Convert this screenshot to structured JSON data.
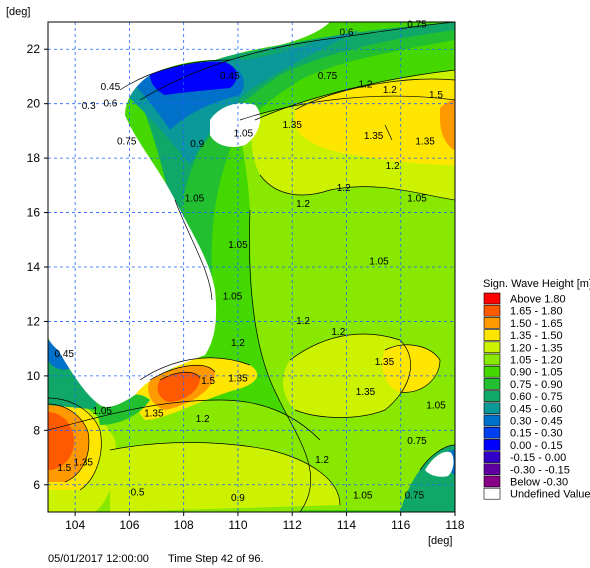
{
  "footer": {
    "timestamp": "05/01/2017 12:00:00",
    "time_step": "Time Step 42 of 96."
  },
  "chart_data": {
    "type": "heatmap",
    "xlabel": "[deg]",
    "ylabel": "[deg]",
    "xlim": [
      103,
      118
    ],
    "ylim": [
      5,
      23
    ],
    "x_ticks": [
      104,
      106,
      108,
      110,
      112,
      114,
      116,
      118
    ],
    "y_ticks": [
      6,
      8,
      10,
      12,
      14,
      16,
      18,
      20,
      22
    ],
    "grid": true,
    "legend_position": "right",
    "legend": {
      "title": "Sign. Wave Height [m]",
      "entries": [
        {
          "label": "Above  1.80",
          "color": "#ff0000"
        },
        {
          "label": "1.65 -  1.80",
          "color": "#ff5a00"
        },
        {
          "label": "1.50 -  1.65",
          "color": "#ff9900"
        },
        {
          "label": "1.35 -  1.50",
          "color": "#ffe600"
        },
        {
          "label": "1.20 -  1.35",
          "color": "#ccf200"
        },
        {
          "label": "1.05 -  1.20",
          "color": "#88e800"
        },
        {
          "label": "0.90 -  1.05",
          "color": "#44d800"
        },
        {
          "label": "0.75 -  0.90",
          "color": "#22c030"
        },
        {
          "label": "0.60 -  0.75",
          "color": "#10a868"
        },
        {
          "label": "0.45 -  0.60",
          "color": "#0a9898"
        },
        {
          "label": "0.30 -  0.45",
          "color": "#0070c8"
        },
        {
          "label": "0.15 -  0.30",
          "color": "#0040f0"
        },
        {
          "label": "0.00 -  0.15",
          "color": "#0000ff"
        },
        {
          "label": "-0.15 -  0.00",
          "color": "#3000c8"
        },
        {
          "label": "-0.30 -  -0.15",
          "color": "#6000a0"
        },
        {
          "label": "Below  -0.30",
          "color": "#880088"
        },
        {
          "label": "Undefined Value",
          "color": "#ffffff"
        }
      ]
    },
    "contour_labels": [
      {
        "text": "0.75",
        "x": 116.6,
        "y": 22.8
      },
      {
        "text": "0.75",
        "x": 113.3,
        "y": 20.9
      },
      {
        "text": "1.2",
        "x": 114.7,
        "y": 20.6
      },
      {
        "text": "1.2",
        "x": 115.6,
        "y": 20.4
      },
      {
        "text": "0.6",
        "x": 114.0,
        "y": 22.5
      },
      {
        "text": "0.6",
        "x": 105.3,
        "y": 19.9
      },
      {
        "text": "0.45",
        "x": 109.7,
        "y": 20.9
      },
      {
        "text": "0.45",
        "x": 105.3,
        "y": 20.5
      },
      {
        "text": "0.3",
        "x": 104.5,
        "y": 19.8
      },
      {
        "text": "1.35",
        "x": 112.0,
        "y": 19.1
      },
      {
        "text": "1.35",
        "x": 115.0,
        "y": 18.7
      },
      {
        "text": "1.35",
        "x": 116.9,
        "y": 18.5
      },
      {
        "text": "1.5",
        "x": 117.3,
        "y": 20.2
      },
      {
        "text": "0.75",
        "x": 105.9,
        "y": 18.5
      },
      {
        "text": "0.9",
        "x": 108.5,
        "y": 18.4
      },
      {
        "text": "1.05",
        "x": 110.2,
        "y": 18.8
      },
      {
        "text": "1.2",
        "x": 115.7,
        "y": 17.6
      },
      {
        "text": "1.2",
        "x": 112.4,
        "y": 16.2
      },
      {
        "text": "1.2",
        "x": 113.9,
        "y": 16.8
      },
      {
        "text": "1.05",
        "x": 116.6,
        "y": 16.4
      },
      {
        "text": "1.05",
        "x": 108.4,
        "y": 16.4
      },
      {
        "text": "1.05",
        "x": 110.0,
        "y": 14.7
      },
      {
        "text": "1.05",
        "x": 115.2,
        "y": 14.1
      },
      {
        "text": "1.05",
        "x": 109.8,
        "y": 12.8
      },
      {
        "text": "1.2",
        "x": 112.4,
        "y": 11.9
      },
      {
        "text": "1.2",
        "x": 113.7,
        "y": 11.5
      },
      {
        "text": "1.2",
        "x": 110.0,
        "y": 11.1
      },
      {
        "text": "1.35",
        "x": 115.4,
        "y": 10.4
      },
      {
        "text": "1.35",
        "x": 114.7,
        "y": 9.3
      },
      {
        "text": "1.35",
        "x": 110.0,
        "y": 9.8
      },
      {
        "text": "1.5",
        "x": 108.9,
        "y": 9.7
      },
      {
        "text": "1.05",
        "x": 117.3,
        "y": 8.8
      },
      {
        "text": "0.75",
        "x": 116.6,
        "y": 7.5
      },
      {
        "text": "1.2",
        "x": 108.7,
        "y": 8.3
      },
      {
        "text": "1.2",
        "x": 113.1,
        "y": 6.8
      },
      {
        "text": "1.35",
        "x": 106.9,
        "y": 8.5
      },
      {
        "text": "1.05",
        "x": 105.0,
        "y": 8.6
      },
      {
        "text": "1.05",
        "x": 114.6,
        "y": 5.5
      },
      {
        "text": "0.75",
        "x": 116.5,
        "y": 5.5
      },
      {
        "text": "0.9",
        "x": 110.0,
        "y": 5.4
      },
      {
        "text": "0.45",
        "x": 103.6,
        "y": 10.7
      },
      {
        "text": "0.5",
        "x": 106.3,
        "y": 5.6
      },
      {
        "text": "1.5",
        "x": 103.6,
        "y": 6.5
      },
      {
        "text": "1.35",
        "x": 104.3,
        "y": 6.7
      }
    ]
  }
}
